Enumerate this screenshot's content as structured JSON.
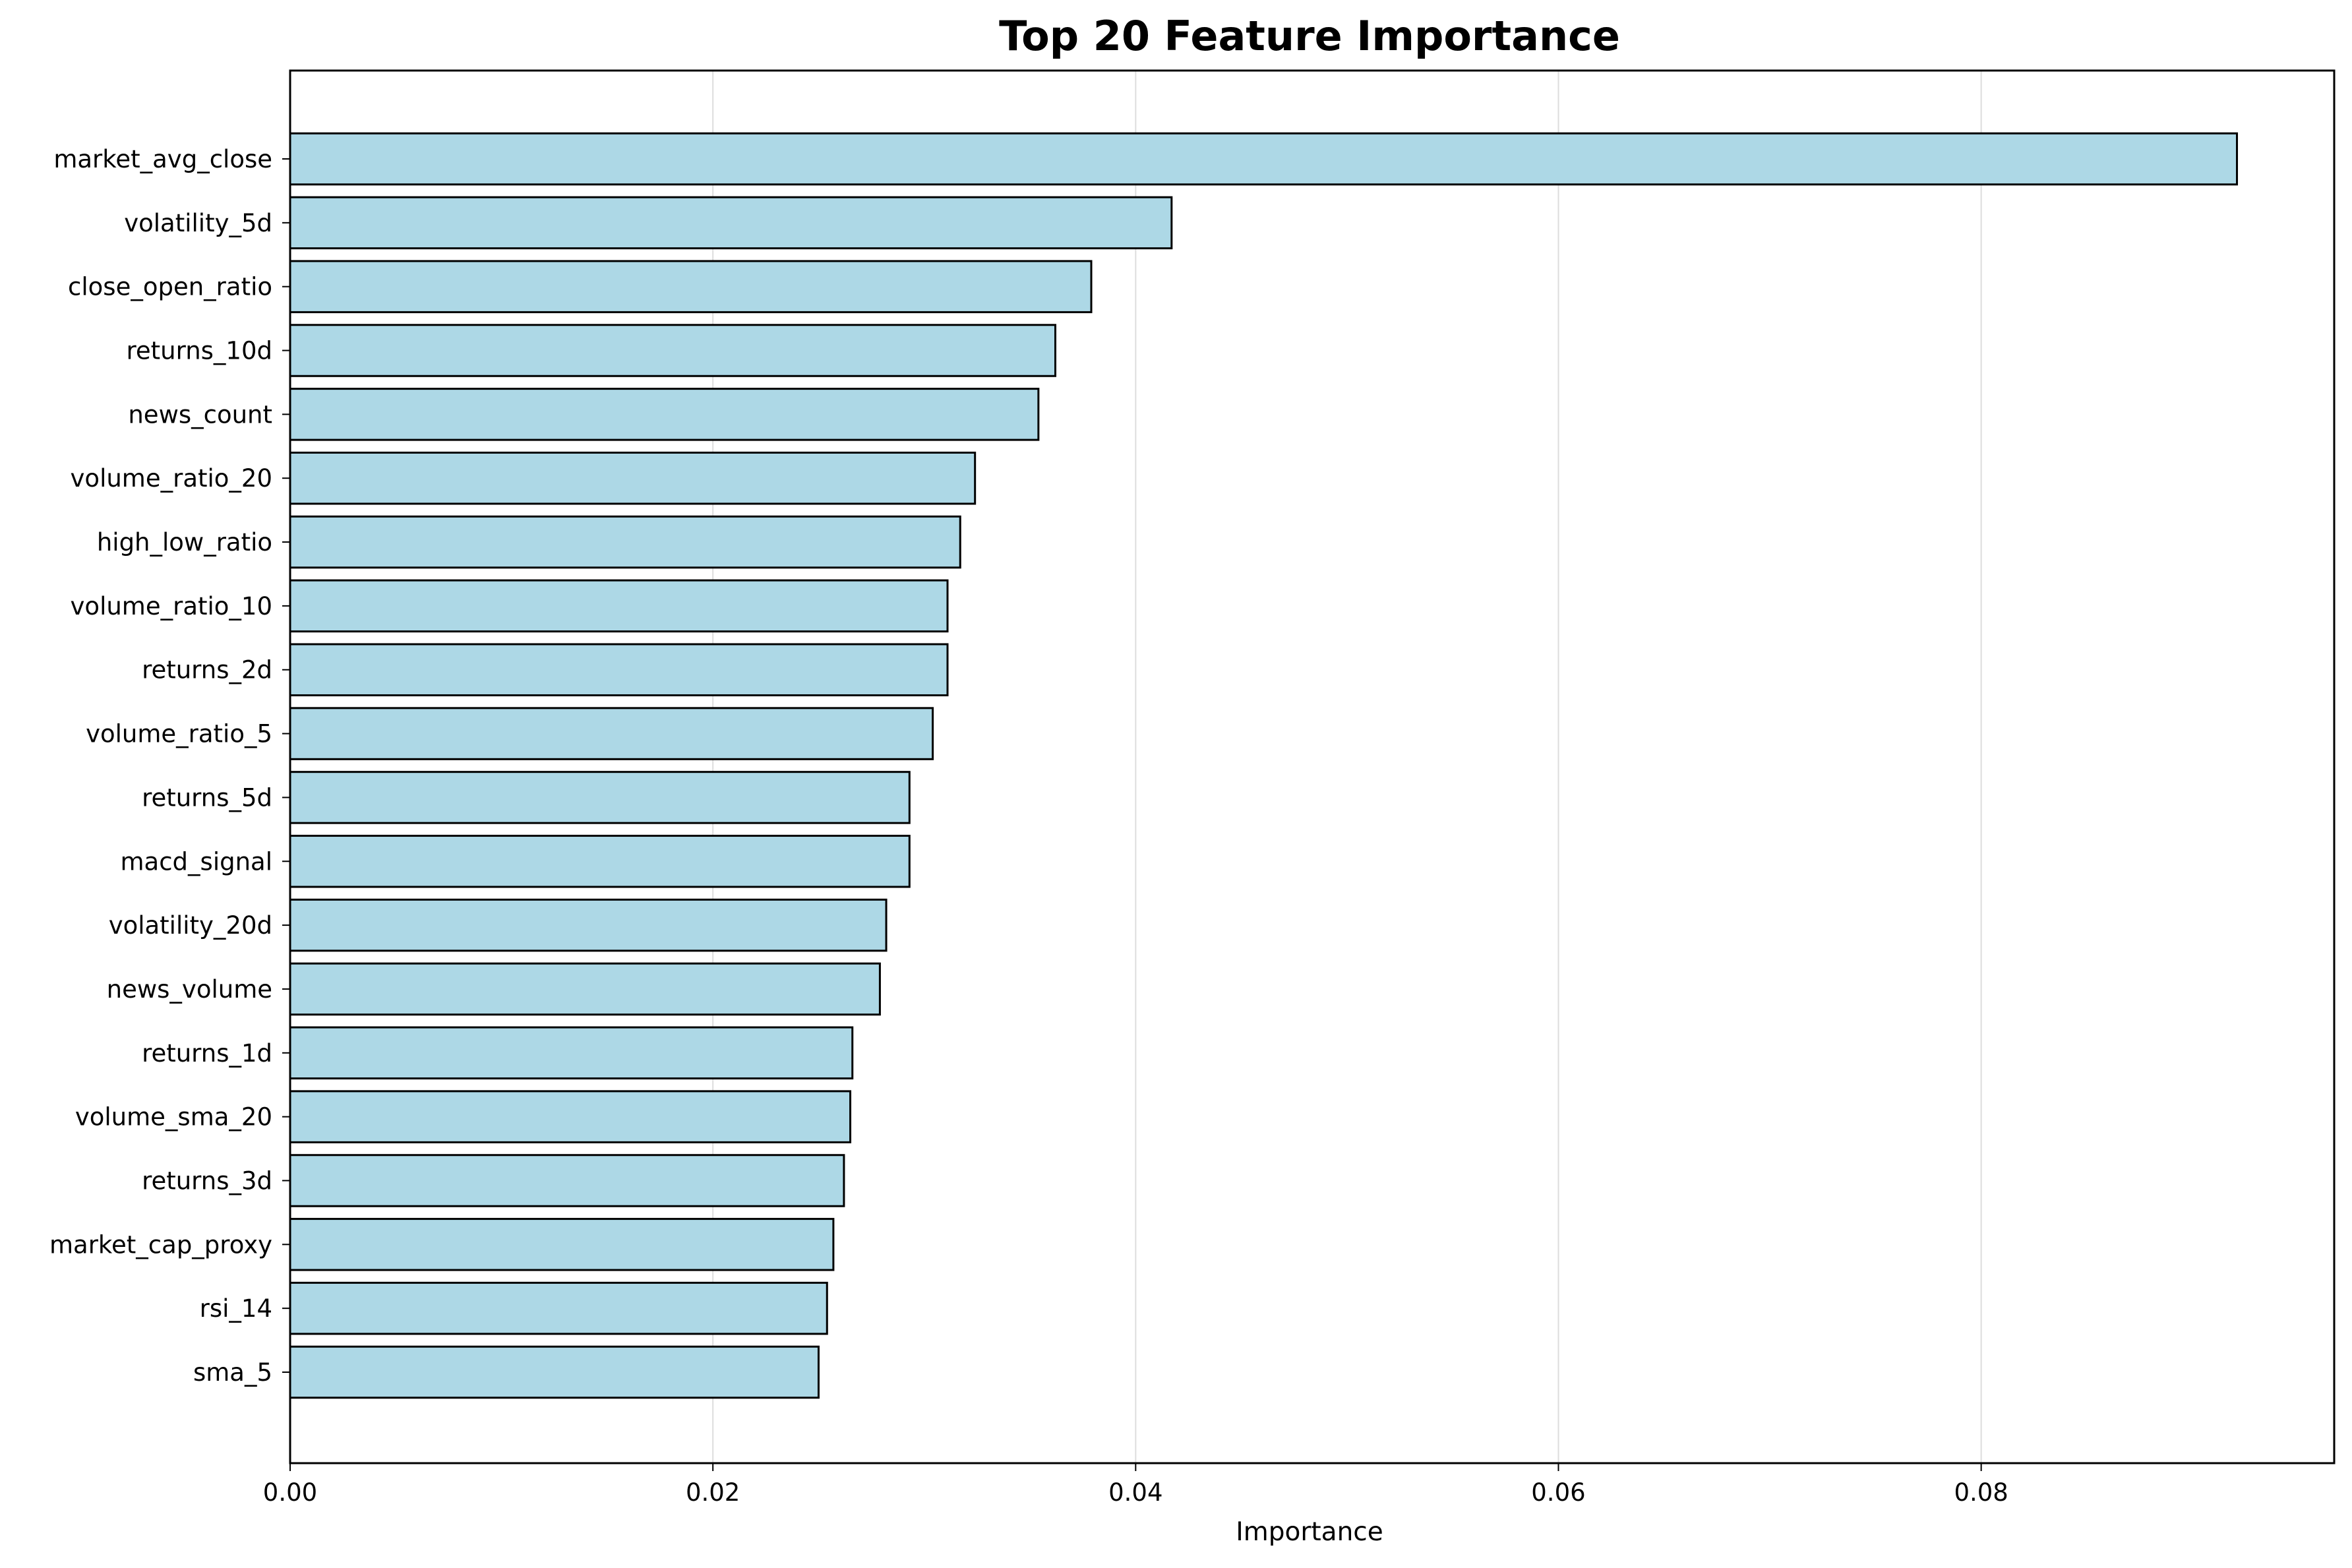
{
  "chart_data": {
    "type": "bar",
    "orientation": "horizontal",
    "title": "Top 20 Feature Importance",
    "xlabel": "Importance",
    "ylabel": "",
    "xlim": [
      0,
      0.0967
    ],
    "xticks": [
      0.0,
      0.02,
      0.04,
      0.06,
      0.08
    ],
    "xtick_labels": [
      "0.00",
      "0.02",
      "0.04",
      "0.06",
      "0.08"
    ],
    "grid": "vertical",
    "bar_color": "#add8e6",
    "edge_color": "#000000",
    "categories": [
      "market_avg_close",
      "volatility_5d",
      "close_open_ratio",
      "returns_10d",
      "news_count",
      "volume_ratio_20",
      "high_low_ratio",
      "volume_ratio_10",
      "returns_2d",
      "volume_ratio_5",
      "returns_5d",
      "macd_signal",
      "volatility_20d",
      "news_volume",
      "returns_1d",
      "volume_sma_20",
      "returns_3d",
      "market_cap_proxy",
      "rsi_14",
      "sma_5"
    ],
    "values": [
      0.0921,
      0.0417,
      0.0379,
      0.0362,
      0.0354,
      0.0324,
      0.0317,
      0.0311,
      0.0311,
      0.0304,
      0.0293,
      0.0293,
      0.0282,
      0.0279,
      0.0266,
      0.0265,
      0.0262,
      0.0257,
      0.0254,
      0.025
    ]
  }
}
